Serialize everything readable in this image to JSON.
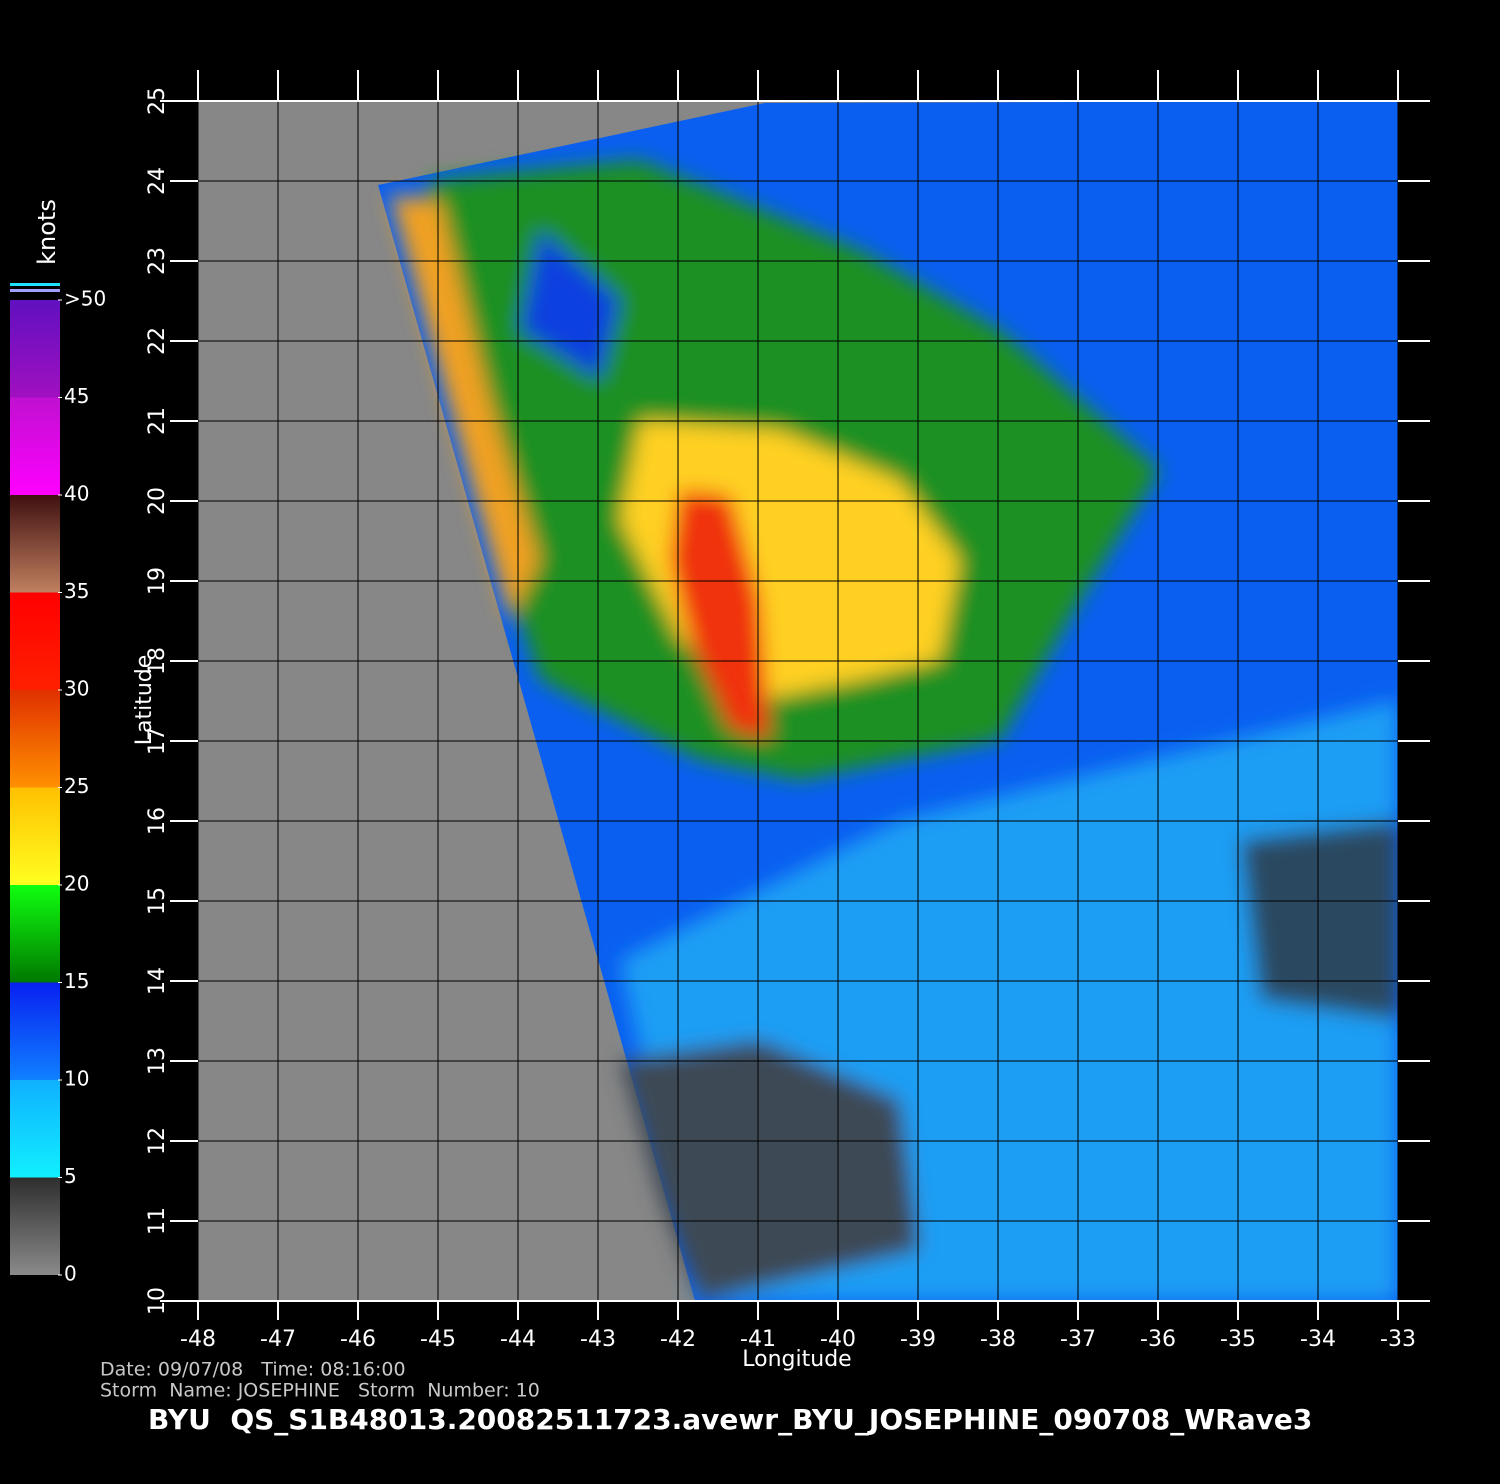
{
  "map": {
    "type": "map",
    "xlim": [
      -48,
      -33
    ],
    "ylim": [
      10,
      25
    ],
    "xticks": [
      -48,
      -47,
      -46,
      -45,
      -44,
      -43,
      -42,
      -41,
      -40,
      -39,
      -38,
      -37,
      -36,
      -35,
      -34,
      -33
    ],
    "yticks": [
      10,
      11,
      12,
      13,
      14,
      15,
      16,
      17,
      18,
      19,
      20,
      21,
      22,
      23,
      24,
      25
    ],
    "x_label": "Longitude",
    "y_label": "Latitude",
    "grid": true,
    "colorbar": {
      "label": "knots",
      "lim": [
        0,
        50
      ],
      "ticks": [
        0,
        5,
        10,
        15,
        20,
        25,
        30,
        35,
        40,
        45,
        {
          "value": 50,
          "label": ">50"
        }
      ],
      "colors": [
        [
          "#8a8a8a",
          "#2e2e2e"
        ],
        [
          "#10f0ff",
          "#10b0ff"
        ],
        [
          "#1080ff",
          "#0820f0"
        ],
        [
          "#007800",
          "#10ff10"
        ],
        [
          "#ffff20",
          "#ffc000"
        ],
        [
          "#ff9000",
          "#e03000"
        ],
        [
          "#ff2000",
          "#ff0000"
        ],
        [
          "#c08060",
          "#401010"
        ],
        [
          "#ff00ff",
          "#c010d0"
        ],
        [
          "#a010c0",
          "#6010c0"
        ]
      ]
    },
    "footer": {
      "line1": "Date: 09/07/08   Time: 08:16:00",
      "line2": "Storm  Name: JOSEPHINE   Storm  Number: 10",
      "title": "BYU  QS_S1B48013.20082511723.avewr_BYU_JOSEPHINE_090708_WRave3"
    }
  }
}
